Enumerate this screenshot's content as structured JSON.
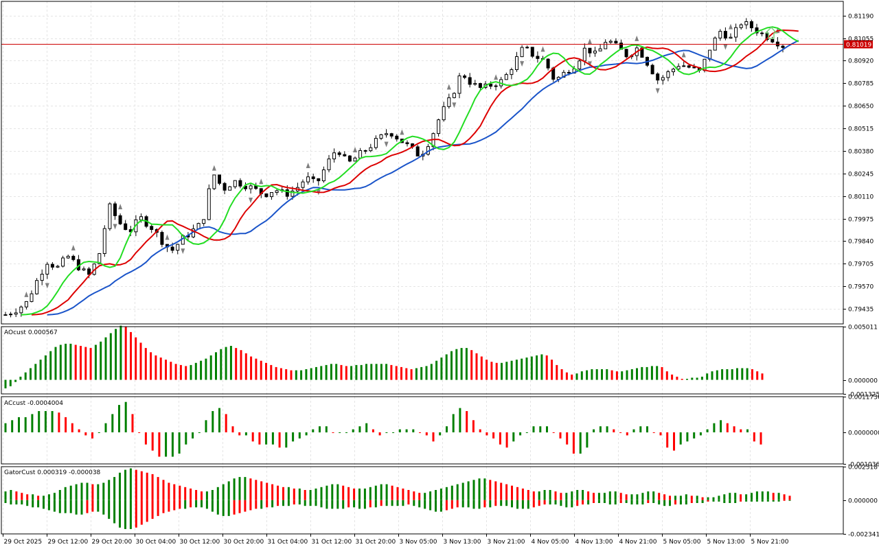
{
  "colors": {
    "bull_bar": "#008000",
    "bear_bar": "#ff0000",
    "alligator_jaw": "#1a54c9",
    "alligator_teeth": "#dd0000",
    "alligator_lips": "#22dd22",
    "bid_line": "#cc0000",
    "fractal": "#808080",
    "grid": "#e4e4e4",
    "buy_arrow": "#7ccd7c"
  },
  "chart_data": [
    {
      "type": "candlestick",
      "panel": "price",
      "last_price_label": "0.81019",
      "ylim": [
        0.79345,
        0.81275
      ],
      "y_ticks": [
        "0.81190",
        "0.81055",
        "0.80920",
        "0.80785",
        "0.80650",
        "0.80515",
        "0.80380",
        "0.80245",
        "0.80110",
        "0.79975",
        "0.79840",
        "0.79705",
        "0.79570",
        "0.79435"
      ],
      "x_ticks": [
        "29 Oct 2025",
        "29 Oct 12:00",
        "29 Oct 20:00",
        "30 Oct 04:00",
        "30 Oct 12:00",
        "30 Oct 20:00",
        "31 Oct 04:00",
        "31 Oct 12:00",
        "31 Oct 20:00",
        "3 Nov 05:00",
        "3 Nov 13:00",
        "3 Nov 21:00",
        "4 Nov 05:00",
        "4 Nov 13:00",
        "4 Nov 21:00",
        "5 Nov 05:00",
        "5 Nov 13:00",
        "5 Nov 21:00"
      ],
      "close_path": [
        0.794,
        0.7943,
        0.7947,
        0.796,
        0.7972,
        0.7968,
        0.7975,
        0.7969,
        0.7963,
        0.7975,
        0.8005,
        0.7995,
        0.799,
        0.7998,
        0.7993,
        0.7985,
        0.7978,
        0.7985,
        0.799,
        0.7995,
        0.8025,
        0.8015,
        0.802,
        0.8018,
        0.8015,
        0.8012,
        0.8015,
        0.8012,
        0.8015,
        0.8022,
        0.8018,
        0.803,
        0.804,
        0.803,
        0.8035,
        0.804,
        0.8045,
        0.805,
        0.8045,
        0.804,
        0.8035,
        0.8045,
        0.806,
        0.807,
        0.8085,
        0.8078,
        0.8075,
        0.8078,
        0.808,
        0.809,
        0.81,
        0.8095,
        0.8092,
        0.808,
        0.8085,
        0.809,
        0.81,
        0.8095,
        0.8105,
        0.81,
        0.8095,
        0.81,
        0.809,
        0.808,
        0.8085,
        0.809,
        0.8088,
        0.8085,
        0.81,
        0.811,
        0.8105,
        0.8115,
        0.8112,
        0.8108,
        0.8105,
        0.8101
      ]
    },
    {
      "type": "bar",
      "panel": "AOcust",
      "label": "AOcust 0.000567",
      "ylim": [
        -0.001325,
        0.005011
      ],
      "y_ticks": [
        "0.005011",
        "0.000000",
        "-0.001325"
      ],
      "values": [
        -0.0008,
        -0.0006,
        -0.0002,
        0.0003,
        0.0007,
        0.0011,
        0.0015,
        0.0019,
        0.0023,
        0.0027,
        0.0031,
        0.0033,
        0.0034,
        0.0034,
        0.0033,
        0.0032,
        0.0031,
        0.003,
        0.0033,
        0.0036,
        0.004,
        0.0044,
        0.0048,
        0.0051,
        0.005,
        0.0045,
        0.004,
        0.0035,
        0.003,
        0.0026,
        0.0023,
        0.0021,
        0.0019,
        0.0017,
        0.0015,
        0.0014,
        0.0013,
        0.0014,
        0.0016,
        0.0018,
        0.002,
        0.0023,
        0.0026,
        0.0029,
        0.0031,
        0.0032,
        0.003,
        0.0028,
        0.0025,
        0.0022,
        0.002,
        0.0018,
        0.0016,
        0.0014,
        0.0012,
        0.0011,
        0.001,
        0.0009,
        0.0009,
        0.0009,
        0.001,
        0.0011,
        0.0012,
        0.0013,
        0.0014,
        0.0015,
        0.0015,
        0.0014,
        0.0013,
        0.0013,
        0.0014,
        0.0014,
        0.0015,
        0.0015,
        0.0015,
        0.0015,
        0.0015,
        0.0014,
        0.0013,
        0.0012,
        0.0011,
        0.001,
        0.0011,
        0.0012,
        0.0013,
        0.0015,
        0.0018,
        0.0021,
        0.0024,
        0.0027,
        0.0029,
        0.003,
        0.003,
        0.0028,
        0.0025,
        0.0022,
        0.0019,
        0.0017,
        0.0016,
        0.0016,
        0.0017,
        0.0018,
        0.0019,
        0.002,
        0.0021,
        0.0022,
        0.0023,
        0.0024,
        0.0023,
        0.0019,
        0.0014,
        0.001,
        0.0007,
        0.0005,
        0.0006,
        0.0008,
        0.0009,
        0.001,
        0.001,
        0.001,
        0.001,
        0.0009,
        0.0008,
        0.0008,
        0.0009,
        0.001,
        0.0011,
        0.0012,
        0.0012,
        0.0013,
        0.0013,
        0.0012,
        0.0008,
        0.0005,
        0.0003,
        0.0001,
        0.0001,
        0.0002,
        0.0002,
        0.0003,
        0.0006,
        0.0008,
        0.0009,
        0.001,
        0.001,
        0.001,
        0.0011,
        0.0011,
        0.0011,
        0.001,
        0.0008,
        0.0006
      ]
    },
    {
      "type": "bar",
      "panel": "ACcust",
      "label": "ACcust -0.0004004",
      "ylim": [
        -0.0010366,
        0.0011736
      ],
      "y_ticks": [
        "0.0011736",
        "0.0000000",
        "-0.0010366"
      ],
      "values": [
        0.0003,
        0.0004,
        0.0005,
        0.0005,
        0.0006,
        0.0007,
        0.0007,
        0.0007,
        0.00065,
        0.0005,
        0.0003,
        0.0001,
        -0.0001,
        -0.0002,
        0.0,
        0.0003,
        0.0006,
        0.0009,
        0.001,
        0.0006,
        0.0,
        -0.0004,
        -0.0006,
        -0.0008,
        -0.0008,
        -0.0008,
        -0.0007,
        -0.0004,
        -0.0002,
        0.0,
        0.0004,
        0.0007,
        0.0008,
        0.0006,
        0.0002,
        -0.0001,
        -0.0001,
        -0.0003,
        -0.0004,
        -0.0004,
        -0.0004,
        -0.0005,
        -0.0005,
        -0.0003,
        -0.0002,
        -0.0001,
        0.0001,
        0.0002,
        0.0002,
        0.0,
        0.0,
        0.0,
        0.0001,
        0.0002,
        0.0003,
        0.0001,
        -0.0001,
        0.0,
        0.0,
        0.0001,
        0.0001,
        0.0001,
        0.0,
        -0.0001,
        -0.0003,
        -0.0001,
        0.0002,
        0.0006,
        0.0008,
        0.0007,
        0.0004,
        0.0001,
        -0.0001,
        -0.0002,
        -0.0004,
        -0.0005,
        -0.0003,
        -0.0001,
        0.0,
        0.0002,
        0.0002,
        0.0002,
        0.0,
        -0.0002,
        -0.0004,
        -0.0007,
        -0.0007,
        -0.0005,
        0.0001,
        0.0002,
        0.0002,
        0.0001,
        0.0,
        -0.0001,
        0.0001,
        0.0002,
        0.0002,
        0.0,
        -0.0001,
        -0.0005,
        -0.0006,
        -0.0004,
        -0.0003,
        -0.0002,
        -0.0001,
        0.0001,
        0.0003,
        0.0004,
        0.0003,
        0.0002,
        0.0001,
        0.0001,
        -0.0003,
        -0.0004
      ],
      "last_value": -0.0004004
    },
    {
      "type": "histogram",
      "panel": "GatorCust",
      "label": "GatorCust 0.000319 -0.000038",
      "ylim": [
        -0.002341,
        0.002318
      ],
      "y_ticks": [
        "0.002318",
        "0.000000",
        "-0.002341"
      ],
      "upper_values": [
        0.0006,
        0.0007,
        0.0006,
        0.0005,
        0.0004,
        0.0004,
        0.0003,
        0.0003,
        0.0004,
        0.0005,
        0.0007,
        0.0009,
        0.001,
        0.0011,
        0.0012,
        0.0012,
        0.0011,
        0.0011,
        0.0012,
        0.0014,
        0.0016,
        0.0019,
        0.0021,
        0.0022,
        0.0021,
        0.002,
        0.0019,
        0.0018,
        0.0016,
        0.0014,
        0.0012,
        0.0011,
        0.001,
        0.0009,
        0.0008,
        0.0007,
        0.0006,
        0.0006,
        0.0007,
        0.0009,
        0.0011,
        0.0013,
        0.0015,
        0.0016,
        0.0016,
        0.0015,
        0.0014,
        0.0013,
        0.0012,
        0.0011,
        0.001,
        0.0009,
        0.0009,
        0.0008,
        0.0008,
        0.0007,
        0.0007,
        0.0008,
        0.0009,
        0.001,
        0.0011,
        0.0011,
        0.001,
        0.0009,
        0.0008,
        0.0008,
        0.0008,
        0.0009,
        0.001,
        0.0011,
        0.0011,
        0.001,
        0.0009,
        0.0008,
        0.0007,
        0.0006,
        0.0005,
        0.0005,
        0.0006,
        0.0007,
        0.0008,
        0.0009,
        0.001,
        0.0011,
        0.0012,
        0.0013,
        0.0014,
        0.0015,
        0.0015,
        0.0014,
        0.0013,
        0.0012,
        0.0011,
        0.001,
        0.0009,
        0.0008,
        0.0007,
        0.0006,
        0.0006,
        0.0007,
        0.0007,
        0.0006,
        0.0005,
        0.0005,
        0.0006,
        0.0007,
        0.0007,
        0.0006,
        0.0005,
        0.0005,
        0.0005,
        0.0006,
        0.0006,
        0.0005,
        0.0004,
        0.0004,
        0.0004,
        0.0005,
        0.0006,
        0.0006,
        0.0005,
        0.0004,
        0.0003,
        0.0003,
        0.0003,
        0.0004,
        0.0003,
        0.0003,
        0.0002,
        0.0002,
        0.0002,
        0.0003,
        0.0004,
        0.0005,
        0.0005,
        0.0004,
        0.0004,
        0.0005,
        0.0006,
        0.0006,
        0.0006,
        0.0005,
        0.0005,
        0.0004,
        0.0003
      ],
      "lower_values": [
        0.0002,
        0.0003,
        0.0003,
        0.0003,
        0.0004,
        0.0005,
        0.0005,
        0.0006,
        0.0007,
        0.0008,
        0.0009,
        0.0009,
        0.0009,
        0.001,
        0.001,
        0.0009,
        0.0008,
        0.0008,
        0.001,
        0.0013,
        0.0016,
        0.0019,
        0.002,
        0.002,
        0.0019,
        0.0017,
        0.0015,
        0.0013,
        0.0011,
        0.0009,
        0.0008,
        0.0007,
        0.0006,
        0.0006,
        0.0005,
        0.0005,
        0.0005,
        0.0006,
        0.0008,
        0.001,
        0.0011,
        0.0011,
        0.001,
        0.0009,
        0.0008,
        0.0007,
        0.0006,
        0.0006,
        0.0005,
        0.0005,
        0.0004,
        0.0004,
        0.0004,
        0.0003,
        0.0003,
        0.0004,
        0.0004,
        0.0004,
        0.0005,
        0.0006,
        0.0006,
        0.0006,
        0.0006,
        0.0005,
        0.0005,
        0.0006,
        0.0006,
        0.0005,
        0.0005,
        0.0004,
        0.0004,
        0.0004,
        0.0004,
        0.0004,
        0.0003,
        0.0004,
        0.0005,
        0.0006,
        0.0007,
        0.0008,
        0.0008,
        0.0007,
        0.0006,
        0.0005,
        0.0005,
        0.0005,
        0.0006,
        0.0006,
        0.0005,
        0.0005,
        0.0004,
        0.0004,
        0.0004,
        0.0005,
        0.0006,
        0.0006,
        0.0006,
        0.0005,
        0.0004,
        0.0003,
        0.0003,
        0.0003,
        0.0004,
        0.0005,
        0.0005,
        0.0004,
        0.0003,
        0.0003,
        0.0002,
        0.0002,
        0.0002,
        0.0003,
        0.0003,
        0.0002,
        0.0002,
        0.0003,
        0.0003,
        0.0003,
        0.0002,
        0.0002,
        0.0003,
        0.0004,
        0.0004,
        0.0003,
        0.0003,
        0.0003,
        0.0002,
        0.0002,
        0.0002,
        0.0001,
        0.0001,
        0.0001,
        0.0002,
        0.0002,
        0.0002,
        0.0001,
        0.0001,
        0.0001,
        0.0001,
        0.0001,
        0.0001,
        0.0001,
        0.0001,
        0.0,
        0.0
      ]
    }
  ]
}
